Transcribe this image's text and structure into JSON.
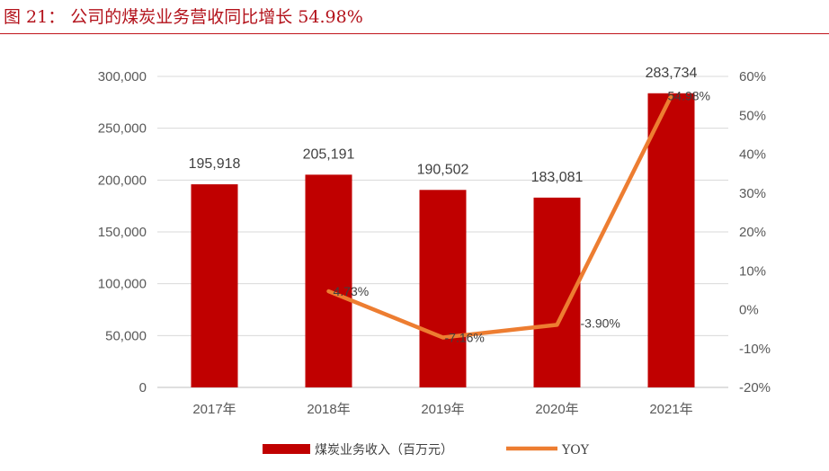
{
  "figure": {
    "title": "图 21： 公司的煤炭业务营收同比增长 54.98%"
  },
  "colors": {
    "bar": "#c00000",
    "line": "#ed7d31",
    "title": "#b3121b",
    "grid": "#d9d9d9"
  },
  "chart_data": {
    "type": "bar",
    "categories": [
      "2017年",
      "2018年",
      "2019年",
      "2020年",
      "2021年"
    ],
    "series": [
      {
        "name": "煤炭业务收入（百万元）",
        "type": "bar",
        "axis": "left",
        "values": [
          195918,
          205191,
          190502,
          183081,
          283734
        ],
        "labels": [
          "195,918",
          "205,191",
          "190,502",
          "183,081",
          "283,734"
        ]
      },
      {
        "name": "YOY",
        "type": "line",
        "axis": "right",
        "values": [
          null,
          4.73,
          -7.16,
          -3.9,
          54.98
        ],
        "labels": [
          "",
          "4.73%",
          "-7.16%",
          "-3.90%",
          "54.98%"
        ]
      }
    ],
    "y_left": {
      "min": 0,
      "max": 300000,
      "ticks": [
        0,
        50000,
        100000,
        150000,
        200000,
        250000,
        300000
      ],
      "tick_labels": [
        "0",
        "50,000",
        "100,000",
        "150,000",
        "200,000",
        "250,000",
        "300,000"
      ]
    },
    "y_right": {
      "min": -20,
      "max": 60,
      "ticks": [
        -20,
        -10,
        0,
        10,
        20,
        30,
        40,
        50,
        60
      ],
      "tick_labels": [
        "-20%",
        "-10%",
        "0%",
        "10%",
        "20%",
        "30%",
        "40%",
        "50%",
        "60%"
      ]
    },
    "grid": true,
    "legend_position": "bottom"
  }
}
